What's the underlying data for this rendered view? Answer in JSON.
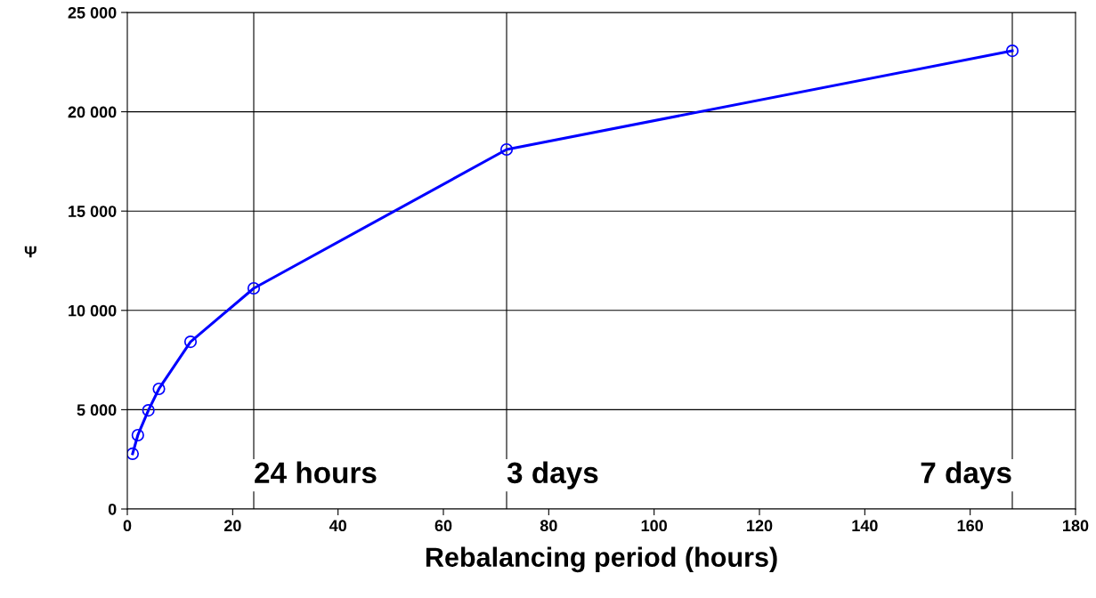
{
  "chart_data": {
    "type": "line",
    "xlabel": "Rebalancing period (hours)",
    "ylabel": "Ψ",
    "x": [
      1,
      2,
      4,
      6,
      12,
      24,
      72,
      168
    ],
    "series": [
      {
        "color": "#0000ff",
        "values": [
          2780,
          3720,
          4970,
          6050,
          8420,
          11110,
          18100,
          23070
        ]
      }
    ],
    "marker": "circle",
    "line_style": "solid",
    "xlim": [
      0,
      180
    ],
    "xticks": [
      0,
      20,
      40,
      60,
      80,
      100,
      120,
      140,
      160,
      180
    ],
    "ylim": [
      0,
      25000
    ],
    "yticks": [
      {
        "value": 0,
        "label": "0"
      },
      {
        "value": 5000,
        "label": "5 000"
      },
      {
        "value": 10000,
        "label": "10 000"
      },
      {
        "value": 15000,
        "label": "15 000"
      },
      {
        "value": 20000,
        "label": "20 000"
      },
      {
        "value": 25000,
        "label": "25 000"
      }
    ],
    "grid": "y",
    "ref_lines": [
      {
        "axis": "x",
        "value": 24,
        "label": "24 hours",
        "color": "#000000"
      },
      {
        "axis": "x",
        "value": 72,
        "label": "3 days",
        "color": "#000000"
      },
      {
        "axis": "x",
        "value": 168,
        "label": "7 days",
        "color": "#000000"
      }
    ]
  }
}
